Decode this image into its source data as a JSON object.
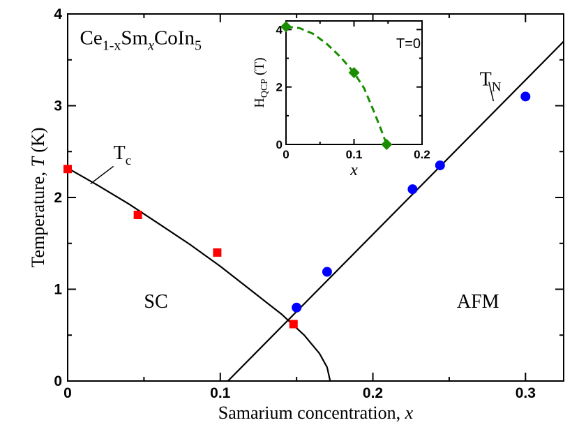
{
  "chart_data": [
    {
      "type": "scatter",
      "xlabel": "Samarium concentration, x",
      "ylabel": "Temperature, T (K)",
      "xlim": [
        0,
        0.325
      ],
      "ylim": [
        0,
        4
      ],
      "x_ticks": [
        "0",
        "0.1",
        "0.2",
        "0.3"
      ],
      "y_ticks": [
        "0",
        "1",
        "2",
        "3",
        "4"
      ],
      "grid": false,
      "legend": "none",
      "formula": {
        "base1": "Ce",
        "sub1": "1-x",
        "base2": "Sm",
        "sub2": "x",
        "base3": "CoIn",
        "sub3": "5"
      },
      "annotations": [
        {
          "text": "T",
          "sub": "c",
          "x": 0.03,
          "y": 2.42
        },
        {
          "text": "T",
          "sub": "N",
          "x": 0.27,
          "y": 3.22
        },
        {
          "text": "SC",
          "x": 0.05,
          "y": 0.8
        },
        {
          "text": "AFM",
          "x": 0.255,
          "y": 0.8
        }
      ],
      "series": [
        {
          "marker": "square",
          "color": "#ff0000",
          "points": [
            {
              "x": 0.0,
              "y": 2.31
            },
            {
              "x": 0.046,
              "y": 1.81
            },
            {
              "x": 0.098,
              "y": 1.4
            },
            {
              "x": 0.148,
              "y": 0.62
            }
          ]
        },
        {
          "marker": "circle",
          "color": "#0000ff",
          "points": [
            {
              "x": 0.15,
              "y": 0.8
            },
            {
              "x": 0.17,
              "y": 1.19
            },
            {
              "x": 0.226,
              "y": 2.09
            },
            {
              "x": 0.244,
              "y": 2.35
            },
            {
              "x": 0.3,
              "y": 3.1
            }
          ]
        },
        {
          "marker": "line",
          "color": "#000000",
          "points": [
            {
              "x": 0.0,
              "y": 2.32
            },
            {
              "x": 0.02,
              "y": 2.13
            },
            {
              "x": 0.04,
              "y": 1.93
            },
            {
              "x": 0.06,
              "y": 1.71
            },
            {
              "x": 0.08,
              "y": 1.49
            },
            {
              "x": 0.1,
              "y": 1.25
            },
            {
              "x": 0.12,
              "y": 0.99
            },
            {
              "x": 0.14,
              "y": 0.73
            },
            {
              "x": 0.155,
              "y": 0.5
            },
            {
              "x": 0.165,
              "y": 0.3
            },
            {
              "x": 0.17,
              "y": 0.15
            },
            {
              "x": 0.172,
              "y": 0.0
            }
          ]
        },
        {
          "marker": "line",
          "color": "#000000",
          "points": [
            {
              "x": 0.105,
              "y": 0.0
            },
            {
              "x": 0.325,
              "y": 3.7
            }
          ]
        }
      ]
    },
    {
      "type": "line",
      "xlabel": "x",
      "ylabel_base": "H",
      "ylabel_sub": "QCP",
      "ylabel_suffix": " (T)",
      "annotation": "T=0",
      "xlim": [
        0,
        0.2
      ],
      "ylim": [
        0,
        4.3
      ],
      "x_ticks": [
        "0",
        "0.1",
        "0.2"
      ],
      "y_ticks": [
        "0",
        "2",
        "4"
      ],
      "series": [
        {
          "marker": "diamond",
          "color": "#1a8c00",
          "points": [
            {
              "x": 0.0,
              "y": 4.1
            },
            {
              "x": 0.1,
              "y": 2.5
            },
            {
              "x": 0.148,
              "y": 0.0
            }
          ]
        },
        {
          "marker": "dashed-line",
          "color": "#1a8c00",
          "points": [
            {
              "x": 0.0,
              "y": 4.1
            },
            {
              "x": 0.02,
              "y": 4.05
            },
            {
              "x": 0.04,
              "y": 3.85
            },
            {
              "x": 0.06,
              "y": 3.5
            },
            {
              "x": 0.08,
              "y": 3.05
            },
            {
              "x": 0.1,
              "y": 2.5
            },
            {
              "x": 0.115,
              "y": 1.95
            },
            {
              "x": 0.13,
              "y": 1.1
            },
            {
              "x": 0.14,
              "y": 0.5
            },
            {
              "x": 0.148,
              "y": 0.0
            }
          ]
        }
      ]
    }
  ]
}
